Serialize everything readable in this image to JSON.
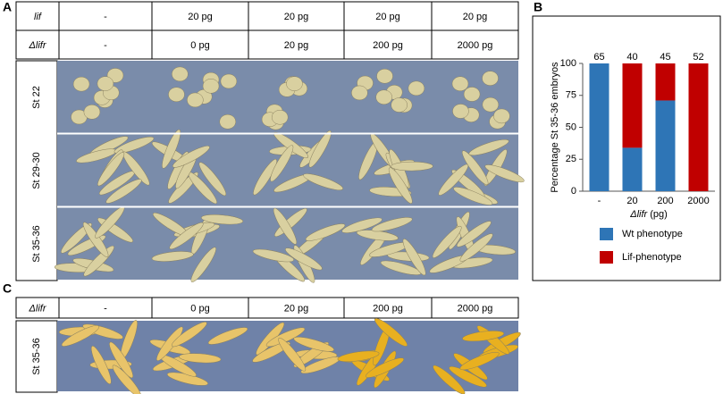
{
  "panel_labels": [
    "A",
    "B",
    "C"
  ],
  "panel_a": {
    "table": {
      "rows": [
        [
          "lif",
          "-",
          "20 pg",
          "20 pg",
          "20 pg",
          "20 pg"
        ],
        [
          "Δlifr",
          "-",
          "0 pg",
          "20 pg",
          "200 pg",
          "2000 pg"
        ]
      ]
    },
    "stage_labels": [
      "St 22",
      "St 29-30",
      "St 35-36"
    ]
  },
  "chart_data": {
    "type": "stacked_bar",
    "y_label": "Percentage St 35-36 embryos",
    "x_label_gene": "Δlifr",
    "x_label_unit": "(pg)",
    "categories": [
      "-",
      "20",
      "200",
      "2000"
    ],
    "series": [
      {
        "name": "Wt phenotype",
        "color": "#2e75b6",
        "values": [
          100,
          34,
          71,
          0
        ]
      },
      {
        "name": "Lif-phenotype",
        "color": "#c00000",
        "values": [
          0,
          66,
          29,
          100
        ]
      }
    ],
    "bar_top_labels": [
      "65",
      "40",
      "45",
      "52"
    ],
    "ylim": [
      0,
      100
    ],
    "yticks": [
      0,
      25,
      50,
      75,
      100
    ],
    "grid": false
  },
  "panel_c": {
    "table": {
      "rows": [
        [
          "Δlifr",
          "-",
          "0 pg",
          "20 pg",
          "200 pg",
          "2000 pg"
        ]
      ]
    },
    "stage_labels": [
      "St 35-36"
    ]
  }
}
